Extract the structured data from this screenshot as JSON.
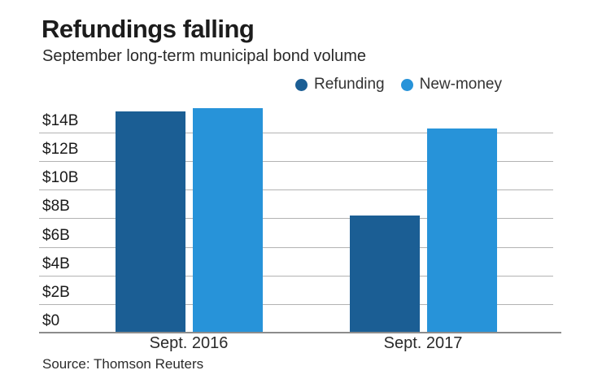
{
  "page": {
    "title": "Refundings falling",
    "subtitle": "September long-term municipal bond volume",
    "source": "Source: Thomson Reuters"
  },
  "legend": {
    "items": [
      {
        "label": "Refunding",
        "color": "#1b5e94"
      },
      {
        "label": "New-money",
        "color": "#2793d9"
      }
    ]
  },
  "chart_data": {
    "type": "bar",
    "title": "Refundings falling",
    "subtitle": "September long-term municipal bond volume",
    "unit": "USD billions",
    "categories": [
      "Sept. 2016",
      "Sept. 2017"
    ],
    "series": [
      {
        "name": "Refunding",
        "color": "#1b5e94",
        "values": [
          15.5,
          8.2
        ]
      },
      {
        "name": "New-money",
        "color": "#2793d9",
        "values": [
          15.7,
          14.3
        ]
      }
    ],
    "y_ticks": [
      {
        "label": "$14B",
        "value": 14
      },
      {
        "label": "$12B",
        "value": 12
      },
      {
        "label": "$10B",
        "value": 10
      },
      {
        "label": "$8B",
        "value": 8
      },
      {
        "label": "$6B",
        "value": 6
      },
      {
        "label": "$4B",
        "value": 4
      },
      {
        "label": "$2B",
        "value": 2
      },
      {
        "label": "$0",
        "value": 0
      }
    ],
    "ylim": [
      0,
      16
    ],
    "grid": true,
    "legend_position": "top-right",
    "source": "Source: Thomson Reuters"
  }
}
